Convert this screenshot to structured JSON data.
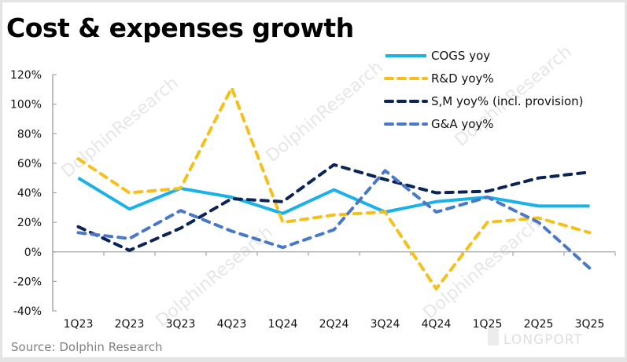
{
  "chart_data": {
    "type": "line",
    "title": "Cost & expenses growth",
    "source": "Source: Dolphin Research",
    "watermarks": [
      "DolphinResearch",
      "LONGPORT"
    ],
    "xlabel": "",
    "ylabel": "",
    "categories": [
      "1Q23",
      "2Q23",
      "3Q23",
      "4Q23",
      "1Q24",
      "2Q24",
      "3Q24",
      "4Q24",
      "1Q25",
      "2Q25",
      "3Q25"
    ],
    "ylim": [
      -40,
      120
    ],
    "yticks": [
      -40,
      -20,
      0,
      20,
      40,
      60,
      80,
      100,
      120
    ],
    "ytick_labels": [
      "-40%",
      "-20%",
      "0%",
      "20%",
      "40%",
      "60%",
      "80%",
      "100%",
      "120%"
    ],
    "grid": false,
    "legend_position": "top-right",
    "series": [
      {
        "name": "COGS yoy",
        "color": "#1ab0e8",
        "style": "solid",
        "values": [
          50,
          29,
          43,
          37,
          26,
          42,
          27,
          34,
          37,
          31,
          31
        ]
      },
      {
        "name": "R&D yoy%",
        "color": "#f5c01a",
        "style": "dashed",
        "values": [
          63,
          40,
          43,
          111,
          20,
          25,
          27,
          -25,
          20,
          23,
          13
        ]
      },
      {
        "name": "S,M yoy% (incl. provision)",
        "color": "#0c2357",
        "style": "dashed",
        "values": [
          17,
          1,
          16,
          36,
          34,
          59,
          49,
          40,
          41,
          50,
          54
        ]
      },
      {
        "name": "G&A yoy%",
        "color": "#4a78c8",
        "style": "dashed",
        "values": [
          13,
          9,
          28,
          14,
          3,
          15,
          55,
          27,
          37,
          20,
          -11
        ]
      }
    ]
  }
}
